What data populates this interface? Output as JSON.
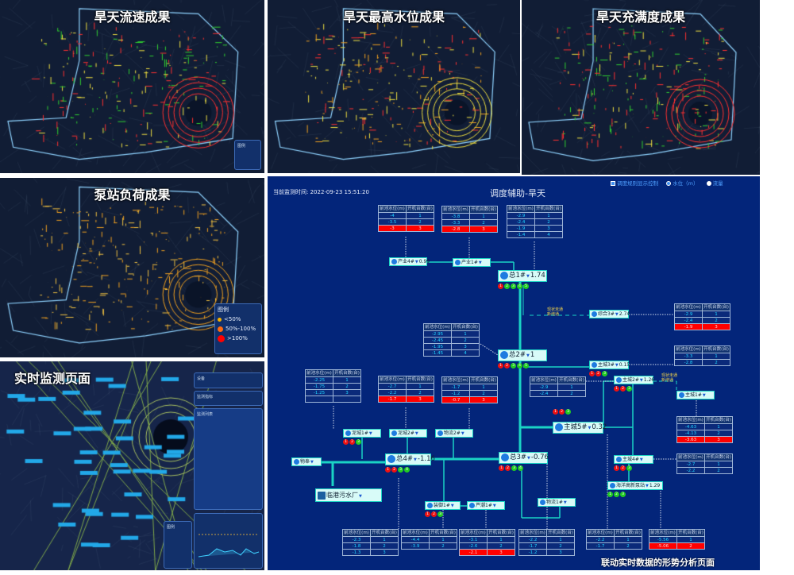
{
  "panels": {
    "flow_speed": {
      "title": "旱天流速成果",
      "legend_title": "图例",
      "colors": [
        "#ff3030",
        "#f0e040",
        "#30d030"
      ]
    },
    "max_level": {
      "title": "旱天最高水位成果",
      "colors": [
        "#f0e040",
        "#f0a020",
        "#ff3030"
      ]
    },
    "fullness": {
      "title": "旱天充满度成果",
      "colors": [
        "#ff3030",
        "#f0e040",
        "#30d030"
      ]
    },
    "pump_load": {
      "title": "泵站负荷成果",
      "legend_title": "图例",
      "legend_items": [
        "<50%",
        "50%-100%",
        ">100%"
      ],
      "legend_colors": [
        "#f5b000",
        "#ff6a10",
        "#ff0000"
      ],
      "colors": [
        "#f0a020",
        "#f0c040"
      ]
    },
    "monitor": {
      "title": "实时监测页面",
      "side_sections": [
        "设备",
        "监测指标",
        "监测列表"
      ],
      "legend_title": "图例"
    }
  },
  "main": {
    "timestamp_label": "当前监测时间:",
    "timestamp": "2022-09-23 15:51:20",
    "title": "调度辅助-旱天",
    "controls": {
      "rule_toggle": "调度规则显示控制",
      "rule_checked": true,
      "level_radio": "水位（m）",
      "flow_radio": "流量",
      "selected": "level"
    },
    "caption": "联动实时数据的形势分析页面",
    "link_labels": [
      "现状未通",
      "新增通"
    ],
    "table_headers": [
      "前池水位(m)",
      "开机台数(台)"
    ],
    "tables": [
      {
        "rows": [
          [
            "-4",
            "1"
          ],
          [
            "-3.5",
            "2"
          ],
          [
            "-3",
            "3"
          ]
        ],
        "alert_row": 2
      },
      {
        "rows": [
          [
            "-3.8",
            "1"
          ],
          [
            "-3.3",
            "2"
          ],
          [
            "-2.8",
            "3"
          ]
        ],
        "alert_row": 2
      },
      {
        "rows": [
          [
            "-2.9",
            "1"
          ],
          [
            "-2.4",
            "2"
          ],
          [
            "-1.9",
            "3"
          ],
          [
            "-1.4",
            "4"
          ]
        ]
      },
      {
        "rows": [
          [
            "-2.95",
            "1"
          ],
          [
            "-2.45",
            "2"
          ],
          [
            "-1.95",
            "3"
          ],
          [
            "-1.45",
            "4"
          ]
        ]
      },
      {
        "rows": [
          [
            "-2.9",
            "1"
          ],
          [
            "-2.4",
            "2"
          ],
          [
            "-1.9",
            "3"
          ]
        ],
        "alert_row": 2
      },
      {
        "rows": [
          [
            "-3.3",
            "1"
          ],
          [
            "-2.8",
            "2"
          ]
        ]
      },
      {
        "rows": [
          [
            "-2.25",
            "1"
          ],
          [
            "-1.75",
            "2"
          ],
          [
            "-1.25",
            "3"
          ],
          [
            "",
            ""
          ]
        ]
      },
      {
        "rows": [
          [
            "-2.7",
            "1"
          ],
          [
            "-2.2",
            "2"
          ],
          [
            "-1.7",
            "3"
          ]
        ],
        "alert_row": 2
      },
      {
        "rows": [
          [
            "-1.7",
            "1"
          ],
          [
            "-1.2",
            "2"
          ],
          [
            "-0.7",
            "3"
          ]
        ],
        "alert_row": 2
      },
      {
        "rows": [
          [
            "-2.9",
            "1"
          ],
          [
            "-2.4",
            "2"
          ]
        ]
      },
      {
        "rows": [
          [
            "-4.63",
            "1"
          ],
          [
            "-4.13",
            "2"
          ],
          [
            "-3.63",
            "3"
          ]
        ],
        "alert_row": 2
      },
      {
        "rows": [
          [
            "-2.7",
            "1"
          ],
          [
            "-2.2",
            "2"
          ]
        ]
      },
      {
        "rows": [
          [
            "-2.3",
            "1"
          ],
          [
            "-1.8",
            "2"
          ],
          [
            "-1.3",
            "3"
          ]
        ]
      },
      {
        "rows": [
          [
            "-4.4",
            "1"
          ],
          [
            "-3.9",
            "2"
          ]
        ]
      },
      {
        "rows": [
          [
            "-3.1",
            "1"
          ],
          [
            "-2.6",
            "2"
          ],
          [
            "-2.1",
            "3"
          ]
        ],
        "alert_row": 2
      },
      {
        "rows": [
          [
            "-2.2",
            "1"
          ],
          [
            "-1.7",
            "2"
          ],
          [
            "-1.2",
            "3"
          ]
        ]
      },
      {
        "rows": [
          [
            "-2.2",
            "1"
          ],
          [
            "-1.7",
            "2"
          ]
        ]
      },
      {
        "rows": [
          [
            "-5.56",
            "1"
          ],
          [
            "-5.06",
            "2"
          ]
        ],
        "alert_row": 1
      }
    ],
    "stations": [
      {
        "name": "产业4#",
        "value": "0.99"
      },
      {
        "name": "产业1#",
        "value": ""
      },
      {
        "name": "总1#",
        "value": "1.74",
        "pumps": [
          "off",
          "on",
          "on",
          "on",
          "on"
        ]
      },
      {
        "name": "综合3#",
        "value": "2.74"
      },
      {
        "name": "总2#",
        "value": "1",
        "pumps": [
          "off",
          "off",
          "on",
          "on",
          "on"
        ]
      },
      {
        "name": "主城3#",
        "value": "0.15",
        "pumps": [
          "off",
          "off",
          "on"
        ]
      },
      {
        "name": "主城2#",
        "value": "1.26",
        "pumps": [
          "off",
          "off",
          "on"
        ]
      },
      {
        "name": "主城1#",
        "value": ""
      },
      {
        "name": "主城5#",
        "value": "0.32",
        "pumps": [
          "off",
          "off",
          "on"
        ]
      },
      {
        "name": "泥城1#",
        "value": "",
        "pumps": [
          "off",
          "off",
          "on"
        ]
      },
      {
        "name": "泥城2#",
        "value": ""
      },
      {
        "name": "物流2#",
        "value": ""
      },
      {
        "name": "总4#",
        "value": "-1.16",
        "pumps": [
          "off",
          "off",
          "on",
          "on"
        ]
      },
      {
        "name": "物奉",
        "value": ""
      },
      {
        "name": "总3#",
        "value": "-0.76",
        "pumps": [
          "off",
          "off",
          "on",
          "on"
        ]
      },
      {
        "name": "主城4#",
        "value": "",
        "pumps": [
          "off",
          "off",
          "on"
        ]
      },
      {
        "name": "海洋高新泵站",
        "value": "1.29",
        "pumps": [
          "on",
          "on",
          "on"
        ]
      },
      {
        "name": "装御1#",
        "value": "",
        "pumps": [
          "off",
          "off",
          "on"
        ]
      },
      {
        "name": "芦潮1#",
        "value": ""
      },
      {
        "name": "物流1#",
        "value": ""
      }
    ],
    "plant": {
      "name": "临港污水厂"
    },
    "colors": {
      "background": "#03257a",
      "pipe": "#1ad3c4",
      "alert": "#ff0000",
      "pump_on": "#22cc22",
      "pump_off": "#ee1111"
    }
  }
}
